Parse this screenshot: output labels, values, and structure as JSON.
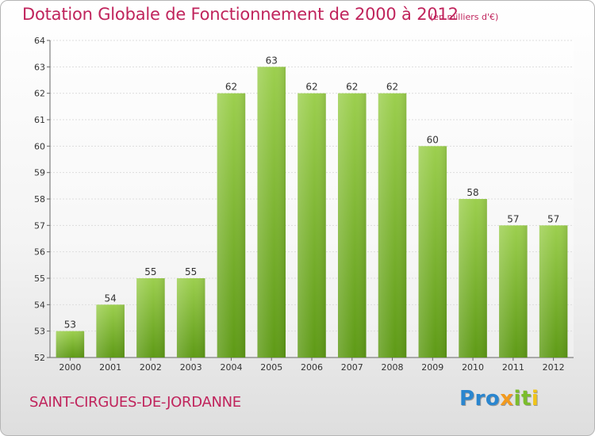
{
  "title": "Dotation Globale de Fonctionnement de 2000 à 2012",
  "subtitle": "(en milliers d'€)",
  "commune": "SAINT-CIRGUES-DE-JORDANNE",
  "logo": {
    "p1": "Pro",
    "p2": "x",
    "p3": "it",
    "p4": "i"
  },
  "colors": {
    "title": "#c0245c",
    "bar_top": "#9ccf4e",
    "bar_bottom": "#5e9a16",
    "grid": "#dddddd"
  },
  "chart_data": {
    "type": "bar",
    "title": "Dotation Globale de Fonctionnement de 2000 à 2012",
    "ylabel": "(en milliers d'€)",
    "xlabel": "",
    "categories": [
      "2000",
      "2001",
      "2002",
      "2003",
      "2004",
      "2005",
      "2006",
      "2007",
      "2008",
      "2009",
      "2010",
      "2011",
      "2012"
    ],
    "values": [
      53,
      54,
      55,
      55,
      62,
      63,
      62,
      62,
      62,
      60,
      58,
      57,
      57
    ],
    "ylim": [
      52,
      64
    ],
    "yticks": [
      52,
      53,
      54,
      55,
      56,
      57,
      58,
      59,
      60,
      61,
      62,
      63,
      64
    ],
    "grid": true,
    "data_labels": true
  }
}
